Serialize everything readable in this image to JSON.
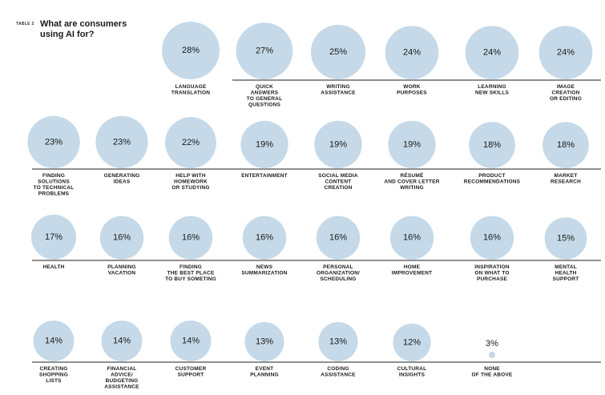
{
  "table_tag": "TABLE 2",
  "title": "What are consumers using AI for?",
  "colors": {
    "bubble": "#c5d9e8",
    "rule": "#222222",
    "text": "#1a1a1a"
  },
  "chart_data": {
    "type": "bubble",
    "title": "What are consumers using AI for?",
    "unit": "%",
    "items": [
      {
        "label": "LANGUAGE TRANSLATION",
        "lines": [
          "LANGUAGE",
          "TRANSLATION"
        ],
        "value": 28
      },
      {
        "label": "QUICK ANSWERS TO GENERAL QUESTIONS",
        "lines": [
          "QUICK",
          "ANSWERS",
          "TO GENERAL",
          "QUESTIONS"
        ],
        "value": 27
      },
      {
        "label": "WRITING ASSISTANCE",
        "lines": [
          "WRITING",
          "ASSISTANCE"
        ],
        "value": 25
      },
      {
        "label": "WORK PURPOSES",
        "lines": [
          "WORK",
          "PURPOSES"
        ],
        "value": 24
      },
      {
        "label": "LEARNING NEW SKILLS",
        "lines": [
          "LEARNING",
          "NEW SKILLS"
        ],
        "value": 24
      },
      {
        "label": "IMAGE CREATION OR EDITING",
        "lines": [
          "IMAGE",
          "CREATION",
          "OR EDITING"
        ],
        "value": 24
      },
      {
        "label": "FINDING SOLUTIONS TO TECHNICAL PROBLEMS",
        "lines": [
          "FINDING",
          "SOLUTIONS",
          "TO TECHNICAL",
          "PROBLEMS"
        ],
        "value": 23
      },
      {
        "label": "GENERATING IDEAS",
        "lines": [
          "GENERATING",
          "IDEAS"
        ],
        "value": 23
      },
      {
        "label": "HELP WITH HOMEWORK OR STUDYING",
        "lines": [
          "HELP WITH",
          "HOMEWORK",
          "OR STUDYING"
        ],
        "value": 22
      },
      {
        "label": "ENTERTAINMENT",
        "lines": [
          "ENTERTAINMENT"
        ],
        "value": 19
      },
      {
        "label": "SOCIAL MEDIA CONTENT CREATION",
        "lines": [
          "SOCIAL MEDIA",
          "CONTENT",
          "CREATION"
        ],
        "value": 19
      },
      {
        "label": "RÉSUMÉ AND COVER LETTER WRITING",
        "lines": [
          "RÉSUMÉ",
          "AND COVER LETTER",
          "WRITING"
        ],
        "value": 19
      },
      {
        "label": "PRODUCT RECOMMENDATIONS",
        "lines": [
          "PRODUCT",
          "RECOMMENDATIONS"
        ],
        "value": 18
      },
      {
        "label": "MARKET RESEARCH",
        "lines": [
          "MARKET",
          "RESEARCH"
        ],
        "value": 18
      },
      {
        "label": "HEALTH",
        "lines": [
          "HEALTH"
        ],
        "value": 17
      },
      {
        "label": "PLANNING VACATION",
        "lines": [
          "PLANNING",
          "VACATION"
        ],
        "value": 16
      },
      {
        "label": "FINDING THE BEST PLACE TO BUY SOMETING",
        "lines": [
          "FINDING",
          "THE BEST PLACE",
          "TO BUY SOMETING"
        ],
        "value": 16
      },
      {
        "label": "NEWS SUMMARIZATION",
        "lines": [
          "NEWS",
          "SUMMARIZATION"
        ],
        "value": 16
      },
      {
        "label": "PERSONAL ORGANIZATION/ SCHEDULING",
        "lines": [
          "PERSONAL",
          "ORGANIZATION/",
          "SCHEDULING"
        ],
        "value": 16
      },
      {
        "label": "HOME IMPROVEMENT",
        "lines": [
          "HOME",
          "IMPROVEMENT"
        ],
        "value": 16
      },
      {
        "label": "INSPIRATION ON WHAT TO PURCHASE",
        "lines": [
          "INSPIRATION",
          "ON WHAT TO",
          "PURCHASE"
        ],
        "value": 16
      },
      {
        "label": "MENTAL HEALTH SUPPORT",
        "lines": [
          "MENTAL",
          "HEALTH",
          "SUPPORT"
        ],
        "value": 15
      },
      {
        "label": "CREATING SHOPPING LISTS",
        "lines": [
          "CREATING",
          "SHOPPING",
          "LISTS"
        ],
        "value": 14
      },
      {
        "label": "FINANCIAL ADVICE/ BUDGETING ASSISTANCE",
        "lines": [
          "FINANCIAL",
          "ADVICE/",
          "BUDGETING",
          "ASSISTANCE"
        ],
        "value": 14
      },
      {
        "label": "CUSTOMER SUPPORT",
        "lines": [
          "CUSTOMER",
          "SUPPORT"
        ],
        "value": 14
      },
      {
        "label": "EVENT PLANNING",
        "lines": [
          "EVENT",
          "PLANNING"
        ],
        "value": 13
      },
      {
        "label": "CODING ASSISTANCE",
        "lines": [
          "CODING",
          "ASSISTANCE"
        ],
        "value": 13
      },
      {
        "label": "CULTURAL INSIGHTS",
        "lines": [
          "CULTURAL",
          "INSIGHTS"
        ],
        "value": 12
      },
      {
        "label": "NONE OF THE ABOVE",
        "lines": [
          "NONE",
          "OF THE ABOVE"
        ],
        "value": 3
      }
    ]
  }
}
